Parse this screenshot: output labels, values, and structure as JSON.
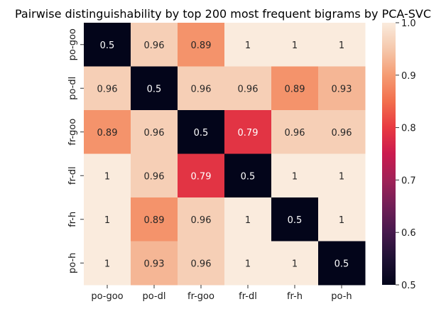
{
  "chart_data": {
    "type": "heatmap",
    "title": "Pairwise distinguishability by top 200 most frequent bigrams by PCA-SVC",
    "x_categories": [
      "po-goo",
      "po-dl",
      "fr-goo",
      "fr-dl",
      "fr-h",
      "po-h"
    ],
    "y_categories": [
      "po-goo",
      "po-dl",
      "fr-goo",
      "fr-dl",
      "fr-h",
      "po-h"
    ],
    "values": [
      [
        0.5,
        0.96,
        0.89,
        1,
        1,
        1
      ],
      [
        0.96,
        0.5,
        0.96,
        0.96,
        0.89,
        0.93
      ],
      [
        0.89,
        0.96,
        0.5,
        0.79,
        0.96,
        0.96
      ],
      [
        1,
        0.96,
        0.79,
        0.5,
        1,
        1
      ],
      [
        1,
        0.89,
        0.96,
        1,
        0.5,
        1
      ],
      [
        1,
        0.93,
        0.96,
        1,
        1,
        0.5
      ]
    ],
    "labels": [
      [
        "0.5",
        "0.96",
        "0.89",
        "1",
        "1",
        "1"
      ],
      [
        "0.96",
        "0.5",
        "0.96",
        "0.96",
        "0.89",
        "0.93"
      ],
      [
        "0.89",
        "0.96",
        "0.5",
        "0.79",
        "0.96",
        "0.96"
      ],
      [
        "1",
        "0.96",
        "0.79",
        "0.5",
        "1",
        "1"
      ],
      [
        "1",
        "0.89",
        "0.96",
        "1",
        "0.5",
        "1"
      ],
      [
        "1",
        "0.93",
        "0.96",
        "1",
        "1",
        "0.5"
      ]
    ],
    "colorbar": {
      "range": [
        0.5,
        1.0
      ],
      "ticks": [
        0.5,
        0.6,
        0.7,
        0.8,
        0.9,
        1.0
      ],
      "tick_labels": [
        "0.5",
        "0.6",
        "0.7",
        "0.8",
        "0.9",
        "1.0"
      ],
      "colormap": "rocket"
    }
  }
}
